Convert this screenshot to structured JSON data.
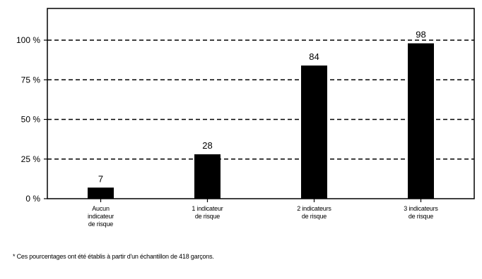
{
  "chart_data": {
    "type": "bar",
    "categories": [
      "Aucun indicateur de risque",
      "1 indicateur de risque",
      "2 indicateurs de risque",
      "3 indicateurs de risque"
    ],
    "category_lines": [
      [
        "Aucun",
        "indicateur",
        "de risque"
      ],
      [
        "1 indicateur",
        "de risque"
      ],
      [
        "2 indicateurs",
        "de risque"
      ],
      [
        "3 indicateurs",
        "de risque"
      ]
    ],
    "values": [
      7,
      28,
      84,
      98
    ],
    "value_labels": [
      "7",
      "28",
      "84",
      "98"
    ],
    "ylim": [
      0,
      120
    ],
    "yticks": [
      {
        "value": 0,
        "label": "0 %"
      },
      {
        "value": 25,
        "label": "25 %"
      },
      {
        "value": 50,
        "label": "50 %"
      },
      {
        "value": 75,
        "label": "75 %"
      },
      {
        "value": 100,
        "label": "100 %"
      }
    ],
    "grid": true,
    "grid_style": "dashed",
    "title": "",
    "xlabel": "",
    "ylabel": "",
    "bar_color": "#000000"
  },
  "footnote": "* Ces pourcentages ont été établis à partir d'un échantillon de 418 garçons."
}
